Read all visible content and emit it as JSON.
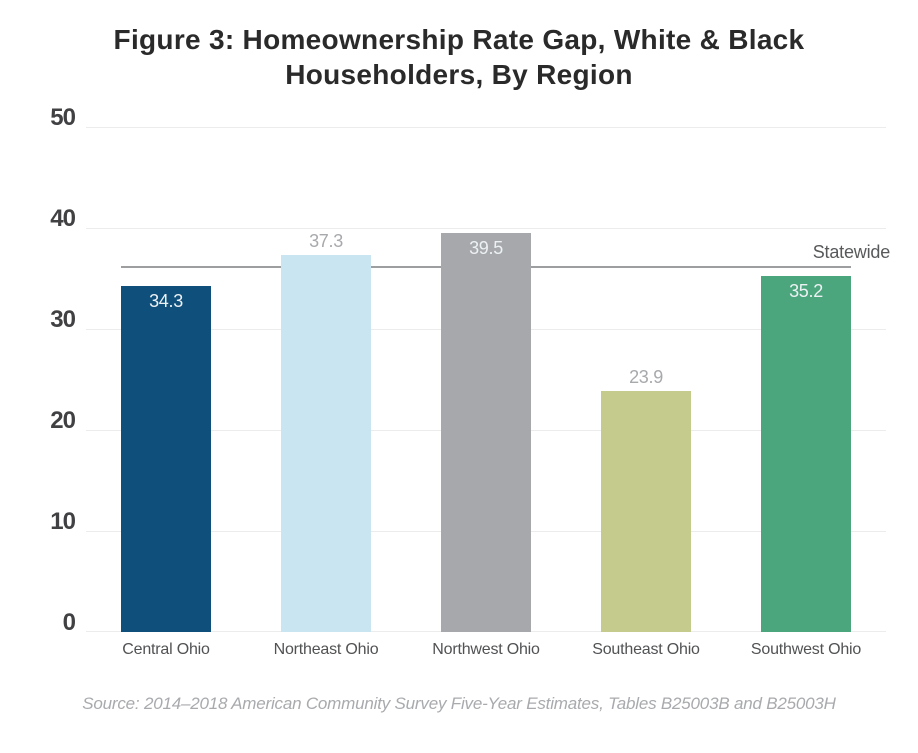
{
  "figure": {
    "title_lines": [
      "Figure 3: Homeownership Rate Gap, White & Black",
      "Householders, By Region"
    ],
    "source": "Source: 2014–2018 American Community Survey Five-Year Estimates, Tables B25003B and B25003H"
  },
  "chart_data": {
    "type": "bar",
    "title": "Figure 3: Homeownership Rate Gap, White & Black Householders, By Region",
    "categories": [
      "Central Ohio",
      "Northeast Ohio",
      "Northwest Ohio",
      "Southeast Ohio",
      "Southwest Ohio"
    ],
    "values": [
      34.3,
      37.3,
      39.5,
      23.9,
      35.2
    ],
    "bar_colors": [
      "#0e4f7c",
      "#c9e5f2",
      "#a6a8ab",
      "#c4cb8d",
      "#4ba57d"
    ],
    "value_label_placement": [
      "inside",
      "outside",
      "inside",
      "outside",
      "inside"
    ],
    "value_label_colors": {
      "inside": "#edf1f3",
      "outside": "#a7a9ac"
    },
    "ylim": [
      0,
      50
    ],
    "yticks": [
      0,
      10,
      20,
      30,
      40,
      50
    ],
    "grid": true,
    "gridline_color": "#ececec",
    "xlabel": "",
    "ylabel": "",
    "legend": "none",
    "reference_line": {
      "label": "Statewide",
      "value": 36.0,
      "color": "#9c9ea0"
    }
  }
}
